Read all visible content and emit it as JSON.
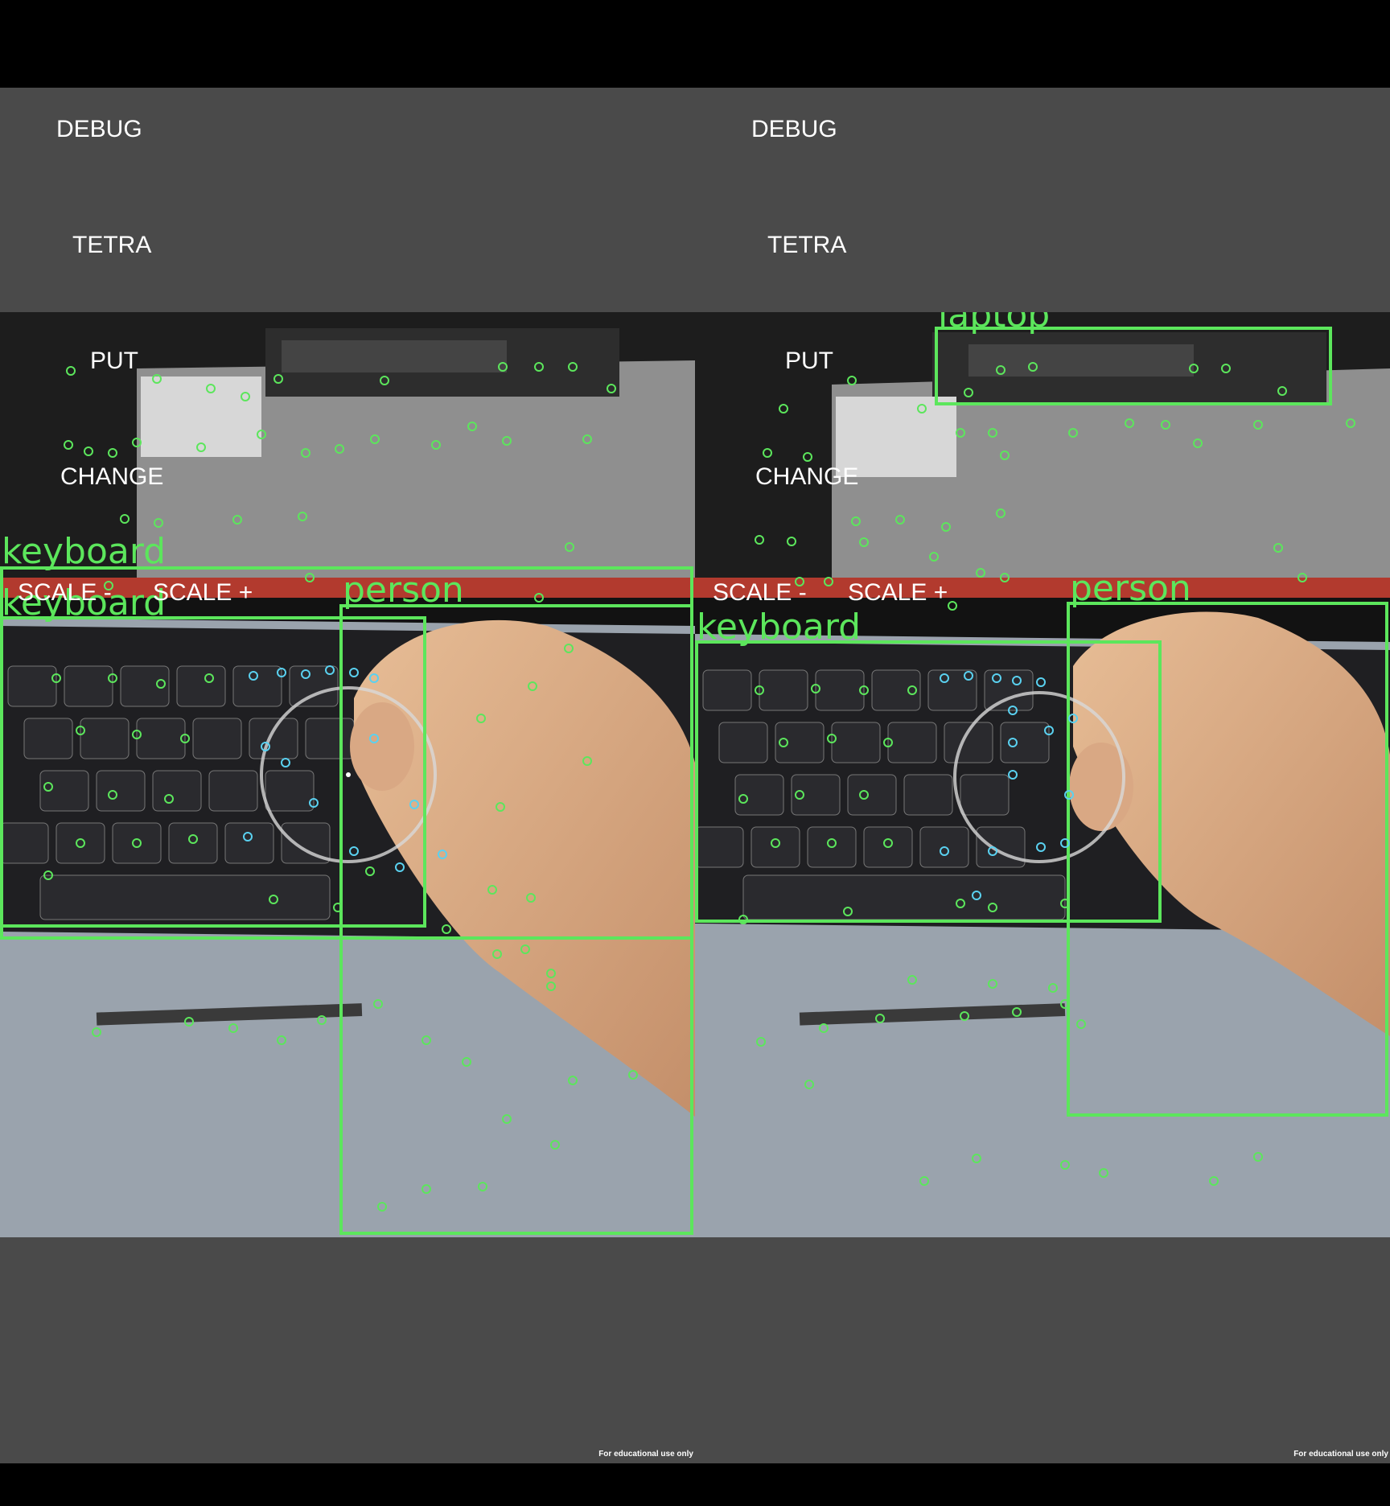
{
  "panes": [
    {
      "id": "left",
      "buttons": {
        "debug": "DEBUG",
        "tetra": "TETRA",
        "put": "PUT",
        "change": "CHANGE",
        "scale_minus": "SCALE -",
        "scale_plus": "SCALE +"
      },
      "detections": [
        "keyboard",
        "keyboard",
        "person"
      ],
      "footer": "For educational use only"
    },
    {
      "id": "right",
      "buttons": {
        "debug": "DEBUG",
        "tetra": "TETRA",
        "put": "PUT",
        "change": "CHANGE",
        "scale_minus": "SCALE -",
        "scale_plus": "SCALE +"
      },
      "detections": [
        "laptop",
        "keyboard",
        "person"
      ],
      "footer": "For educational use only"
    }
  ],
  "colors": {
    "background": "#4a4a4a",
    "box": "#5ce65c",
    "point_green": "#5ce65c",
    "point_cyan": "#5ad1f0",
    "text": "#ffffff"
  }
}
